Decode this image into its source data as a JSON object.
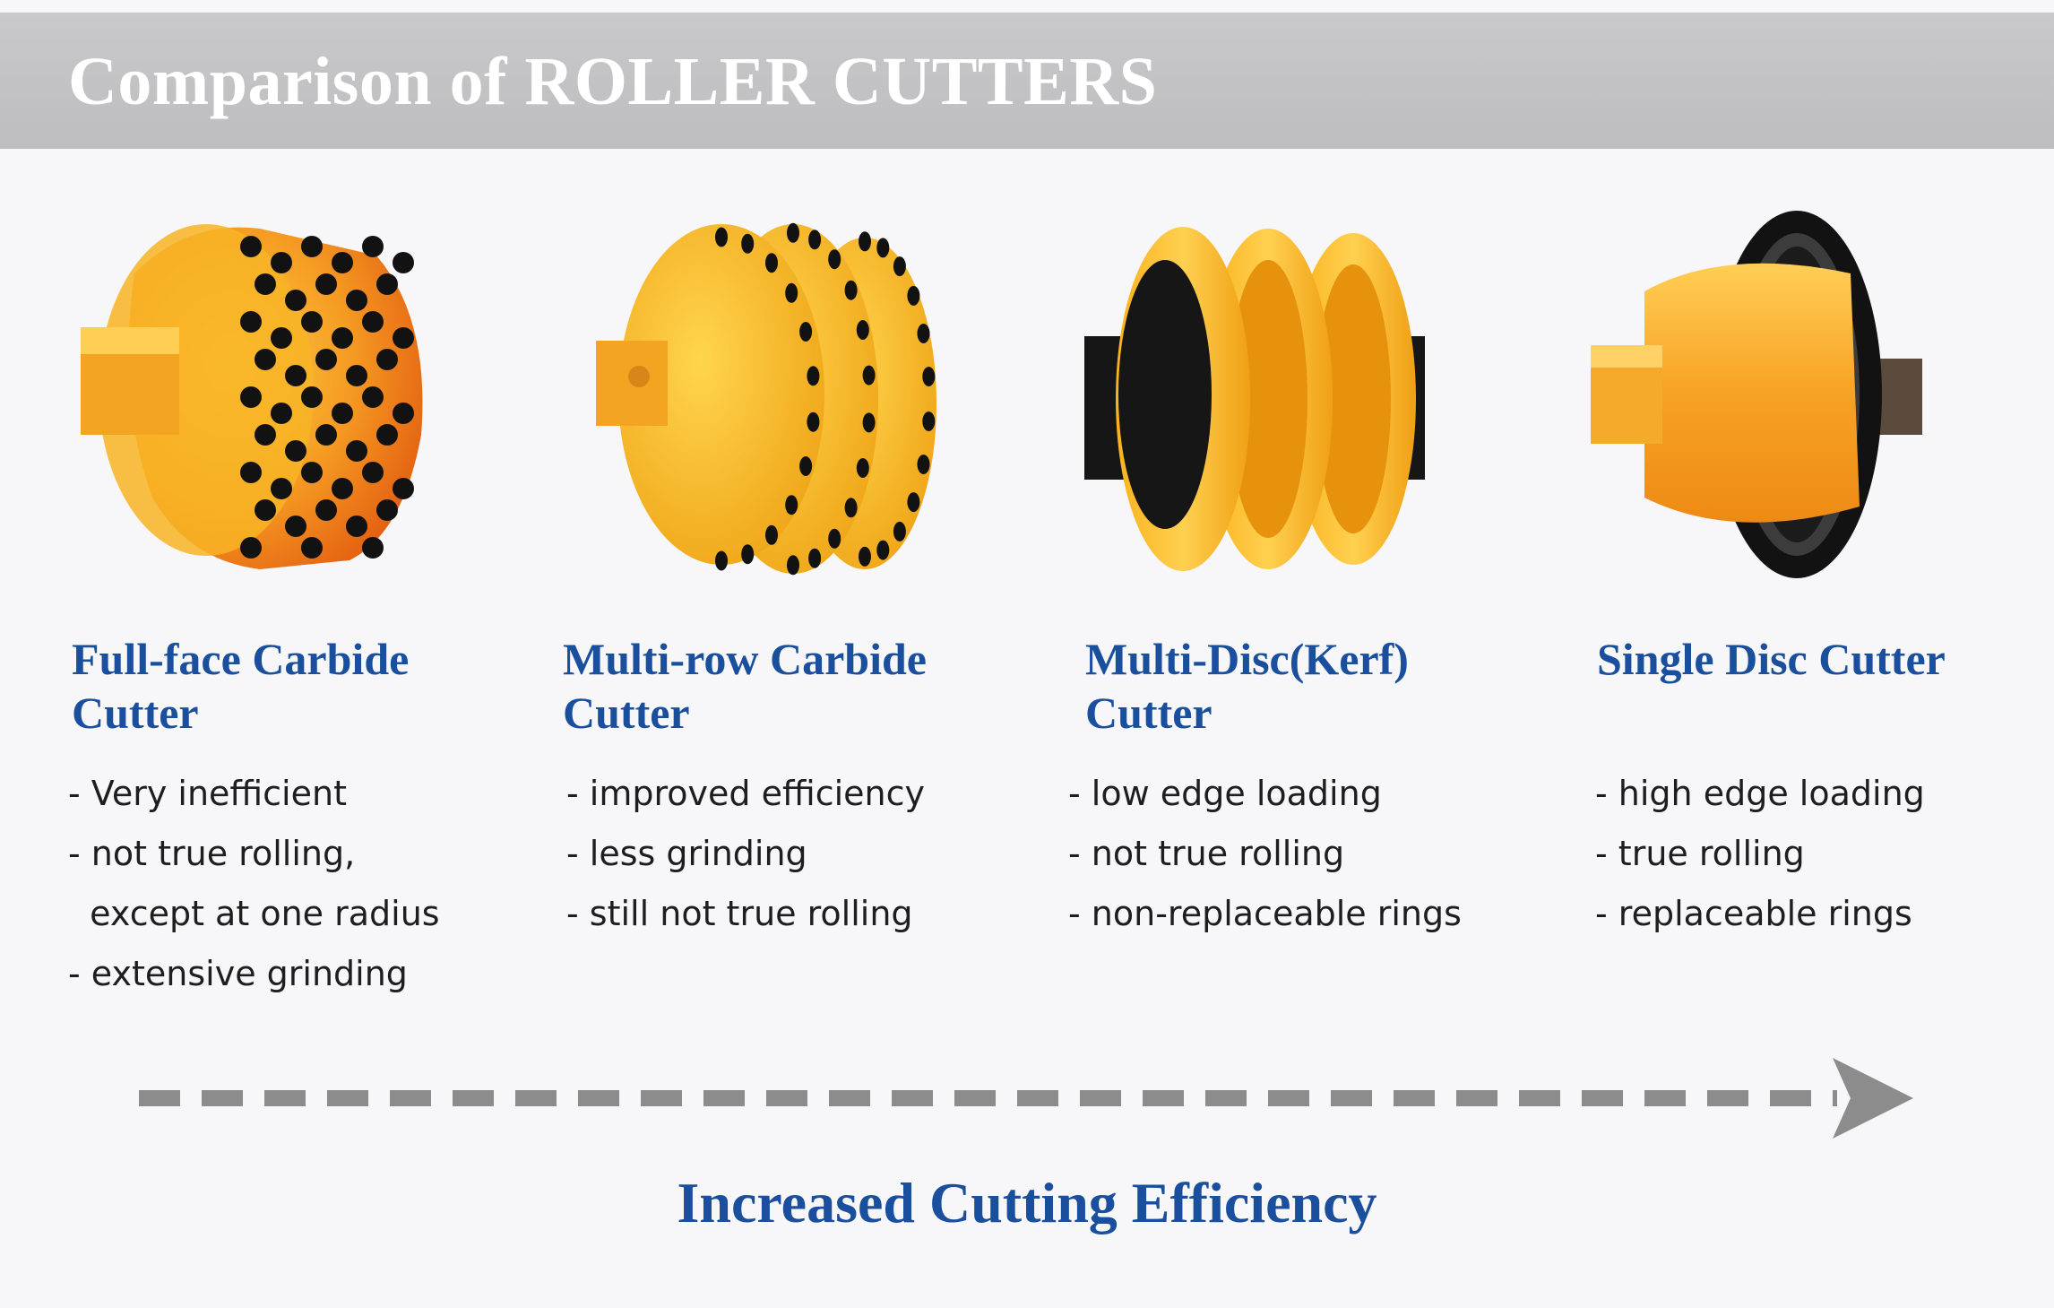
{
  "header": {
    "title": "Comparison of ROLLER CUTTERS"
  },
  "cutters": [
    {
      "title": "Full-face Carbide\nCutter",
      "features": [
        "- Very inefficient",
        "- not true rolling,",
        "  except at one radius",
        "- extensive grinding"
      ]
    },
    {
      "title": "Multi-row Carbide\nCutter",
      "features": [
        "- improved efficiency",
        "- less grinding",
        "- still not true rolling"
      ]
    },
    {
      "title": "Multi-Disc(Kerf)\nCutter",
      "features": [
        "- low edge loading",
        "- not true rolling",
        "- non-replaceable rings"
      ]
    },
    {
      "title": "Single Disc Cutter",
      "features": [
        "- high edge loading",
        "- true rolling",
        "- replaceable rings"
      ]
    }
  ],
  "footer": {
    "efficiency_label": "Increased Cutting Efficiency"
  },
  "colors": {
    "banner": "#c4c4c6",
    "title_blue": "#1a4f9e",
    "cutter_yellow": "#f7b51c",
    "cutter_orange": "#ec6a16",
    "carbide_black": "#141414",
    "arrow_gray": "#8c8c8c"
  }
}
